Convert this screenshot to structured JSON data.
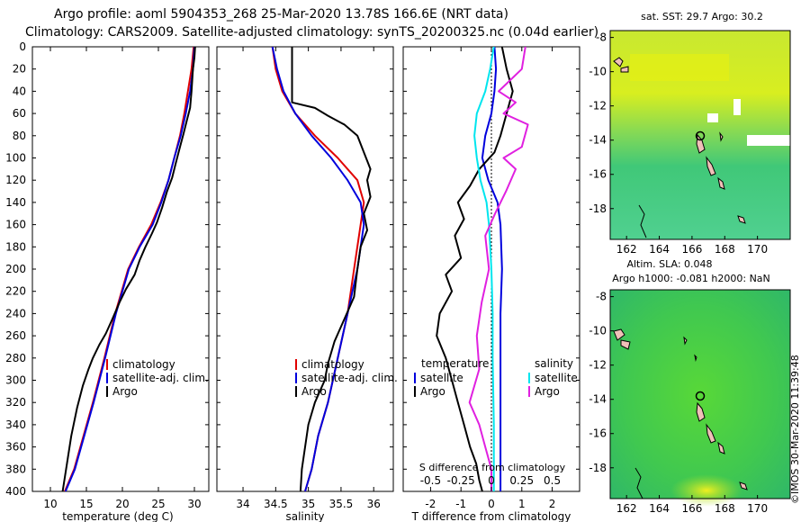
{
  "header": {
    "line1": "Argo profile: aoml 5904353_268 25-Mar-2020 13.78S 166.6E (NRT data)",
    "line2": "Climatology: CARS2009. Satellite-adjusted climatology: synTS_20200325.nc (0.04d earlier)"
  },
  "credit": "©IMOS 30-Mar-2020 11:39:48",
  "colors": {
    "climatology": "#e00000",
    "satellite": "#0000dd",
    "argo": "#000000",
    "sat_salinity": "#00e5ee",
    "argo_salinity": "#e020e0"
  },
  "chart_data": [
    {
      "type": "line",
      "name": "temperature-panel",
      "xlabel": "temperature (deg C)",
      "ylabel": "",
      "xlim": [
        7.5,
        32
      ],
      "ylim": [
        400,
        0
      ],
      "xticks": [
        10,
        15,
        20,
        25,
        30
      ],
      "yticks": [
        0,
        20,
        40,
        60,
        80,
        100,
        120,
        140,
        160,
        180,
        200,
        220,
        240,
        260,
        280,
        300,
        320,
        340,
        360,
        380,
        400
      ],
      "legend": [
        "climatology",
        "satellite-adj. clim.",
        "Argo"
      ],
      "series": [
        {
          "name": "climatology",
          "color": "#e00000",
          "x": [
            29.9,
            29.6,
            29.1,
            28.6,
            28.0,
            27.2,
            26.4,
            25.3,
            24.0,
            22.3,
            20.8,
            19.0,
            17.5,
            15.9,
            14.6,
            13.3,
            12.0
          ],
          "y": [
            0,
            20,
            40,
            60,
            80,
            100,
            120,
            140,
            160,
            180,
            200,
            240,
            280,
            320,
            350,
            380,
            400
          ]
        },
        {
          "name": "satellite-adj. clim.",
          "color": "#0000dd",
          "x": [
            30.0,
            29.8,
            29.4,
            28.8,
            28.1,
            27.2,
            26.4,
            25.4,
            24.2,
            22.4,
            20.9,
            19.1,
            17.6,
            16.0,
            14.7,
            13.4,
            12.1
          ],
          "y": [
            0,
            20,
            40,
            60,
            80,
            100,
            120,
            140,
            160,
            180,
            200,
            240,
            280,
            320,
            350,
            380,
            400
          ]
        },
        {
          "name": "Argo",
          "color": "#000000",
          "x": [
            30.1,
            30.0,
            29.8,
            29.6,
            29.4,
            29.0,
            28.5,
            28.0,
            27.4,
            26.9,
            26.2,
            25.5,
            24.8,
            24.1,
            23.2,
            22.4,
            21.7,
            20.5,
            19.6,
            18.6,
            17.7,
            16.8,
            15.9,
            15.3,
            14.5,
            13.7,
            12.9,
            12.3,
            11.7
          ],
          "y": [
            0,
            10,
            20,
            40,
            55,
            65,
            78,
            90,
            105,
            118,
            130,
            145,
            158,
            168,
            180,
            192,
            205,
            218,
            230,
            245,
            258,
            268,
            280,
            290,
            305,
            325,
            350,
            375,
            400
          ]
        }
      ]
    },
    {
      "type": "line",
      "name": "salinity-panel",
      "xlabel": "salinity",
      "xlim": [
        33.6,
        36.3
      ],
      "ylim": [
        400,
        0
      ],
      "xticks": [
        34,
        34.5,
        35,
        35.5,
        36
      ],
      "xtick_labels": [
        "34",
        "34.5",
        "35",
        "35.5",
        "36"
      ],
      "legend": [
        "climatology",
        "satellite-adj. clim.",
        "Argo"
      ],
      "series": [
        {
          "name": "climatology",
          "color": "#e00000",
          "x": [
            34.45,
            34.5,
            34.6,
            34.8,
            35.1,
            35.45,
            35.75,
            35.85,
            35.8,
            35.7,
            35.6,
            35.45,
            35.3,
            35.15,
            35.05,
            34.95
          ],
          "y": [
            0,
            20,
            40,
            60,
            80,
            100,
            120,
            140,
            160,
            200,
            240,
            280,
            320,
            350,
            380,
            400
          ]
        },
        {
          "name": "satellite-adj. clim.",
          "color": "#0000dd",
          "x": [
            34.45,
            34.52,
            34.62,
            34.8,
            35.05,
            35.35,
            35.6,
            35.8,
            35.85,
            35.75,
            35.6,
            35.45,
            35.3,
            35.15,
            35.05,
            34.95
          ],
          "y": [
            0,
            20,
            40,
            60,
            80,
            100,
            120,
            140,
            160,
            200,
            240,
            280,
            320,
            350,
            380,
            400
          ]
        },
        {
          "name": "Argo",
          "color": "#000000",
          "x": [
            34.75,
            34.75,
            34.75,
            34.75,
            35.1,
            35.3,
            35.55,
            35.75,
            35.85,
            35.95,
            35.9,
            35.95,
            35.85,
            35.9,
            35.8,
            35.75,
            35.7,
            35.55,
            35.4,
            35.3,
            35.25,
            35.1,
            35.0,
            34.95,
            34.9,
            34.88
          ],
          "y": [
            0,
            20,
            40,
            50,
            55,
            62,
            70,
            80,
            95,
            110,
            120,
            135,
            150,
            165,
            180,
            200,
            225,
            245,
            265,
            285,
            300,
            320,
            340,
            360,
            380,
            400
          ]
        }
      ]
    },
    {
      "type": "line",
      "name": "difference-panel",
      "xlabel": "T difference from climatology",
      "xlim": [
        -2.9,
        2.9
      ],
      "ylim": [
        400,
        0
      ],
      "xticks": [
        -2,
        -1,
        0,
        1,
        2
      ],
      "top_xlabel": "S difference from climatology",
      "top_xticks": [
        -0.5,
        -0.25,
        0,
        0.25,
        0.5
      ],
      "top_xtick_labels": [
        "-0.5",
        "-0.25",
        "0",
        "0.25",
        "0.5"
      ],
      "legend_temperature_title": "temperature",
      "legend_salinity_title": "salinity",
      "legend_temperature": [
        "satellite",
        "Argo"
      ],
      "legend_salinity": [
        "satellite",
        "Argo"
      ],
      "series": [
        {
          "name": "T satellite",
          "color": "#0000dd",
          "x": [
            0.1,
            0.15,
            0.1,
            0.0,
            -0.2,
            -0.3,
            -0.1,
            0.2,
            0.3,
            0.35,
            0.3,
            0.3,
            0.3,
            0.3,
            0.3
          ],
          "y": [
            0,
            20,
            40,
            60,
            80,
            100,
            120,
            140,
            160,
            200,
            240,
            280,
            320,
            360,
            400
          ]
        },
        {
          "name": "T Argo",
          "color": "#000000",
          "x": [
            0.35,
            0.5,
            0.7,
            0.5,
            0.3,
            0.1,
            -0.4,
            -0.7,
            -1.1,
            -0.9,
            -1.2,
            -1.0,
            -1.5,
            -1.3,
            -1.7,
            -1.8,
            -1.5,
            -1.3,
            -1.1,
            -0.9,
            -0.7,
            -0.5,
            -0.4,
            -0.3
          ],
          "y": [
            0,
            20,
            40,
            60,
            80,
            95,
            110,
            125,
            140,
            155,
            170,
            190,
            205,
            220,
            240,
            260,
            280,
            300,
            320,
            340,
            360,
            375,
            390,
            400
          ]
        },
        {
          "name": "S satellite",
          "color": "#00e5ee",
          "x": [
            0.02,
            -0.01,
            -0.05,
            -0.12,
            -0.14,
            -0.12,
            -0.09,
            -0.04,
            -0.02,
            0.0,
            0.01,
            0.01,
            0.02,
            0.02
          ],
          "y": [
            0,
            20,
            40,
            60,
            80,
            100,
            120,
            140,
            160,
            200,
            240,
            280,
            340,
            400
          ]
        },
        {
          "name": "S Argo",
          "color": "#e020e0",
          "x": [
            0.28,
            0.25,
            0.06,
            0.2,
            0.1,
            0.3,
            0.25,
            0.1,
            0.2,
            0.12,
            0.03,
            -0.05,
            -0.02,
            -0.08,
            -0.12,
            -0.1,
            -0.18,
            -0.1,
            -0.05,
            0.0,
            0.0
          ],
          "y": [
            0,
            20,
            40,
            50,
            60,
            70,
            90,
            100,
            110,
            130,
            150,
            170,
            200,
            230,
            260,
            290,
            320,
            340,
            360,
            380,
            400
          ]
        }
      ]
    },
    {
      "type": "heatmap",
      "name": "sst-map",
      "title": "sat. SST: 29.7 Argo: 30.2",
      "xlim": [
        161,
        172
      ],
      "ylim": [
        -19.8,
        -7.6
      ],
      "xticks": [
        162,
        164,
        166,
        168,
        170
      ],
      "yticks": [
        -8,
        -10,
        -12,
        -14,
        -16,
        -18
      ],
      "marker": {
        "lon": 166.6,
        "lat": -13.78
      }
    },
    {
      "type": "heatmap",
      "name": "sla-map",
      "title_line1": "Altim. SLA: 0.048",
      "title_line2": "Argo h1000: -0.081 h2000: NaN",
      "xlim": [
        161,
        172
      ],
      "ylim": [
        -19.8,
        -7.6
      ],
      "xticks": [
        162,
        164,
        166,
        168,
        170
      ],
      "yticks": [
        -8,
        -10,
        -12,
        -14,
        -16,
        -18
      ],
      "marker": {
        "lon": 166.6,
        "lat": -13.78
      }
    }
  ]
}
